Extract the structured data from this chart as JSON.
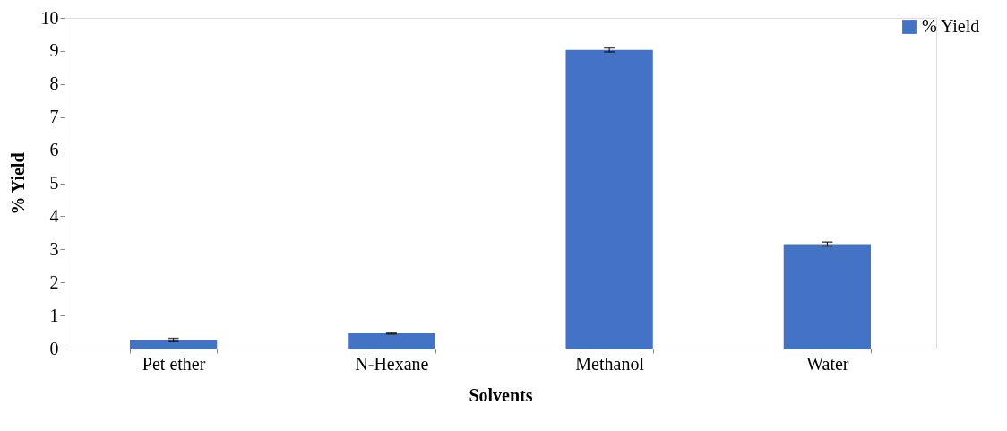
{
  "chart_data": {
    "type": "bar",
    "xlabel": "Solvents",
    "ylabel": "% Yield",
    "categories": [
      "Pet ether",
      "N-Hexane",
      "Methanol",
      "Water"
    ],
    "series": [
      {
        "name": "% Yield",
        "color": "#4472c4",
        "values": [
          0.26,
          0.46,
          9.03,
          3.16
        ],
        "errors": [
          0.05,
          0.02,
          0.06,
          0.06
        ]
      }
    ],
    "ylim": [
      0,
      10
    ],
    "yticks": [
      0,
      1,
      2,
      3,
      4,
      5,
      6,
      7,
      8,
      9,
      10
    ],
    "grid": false,
    "legend": "right"
  }
}
